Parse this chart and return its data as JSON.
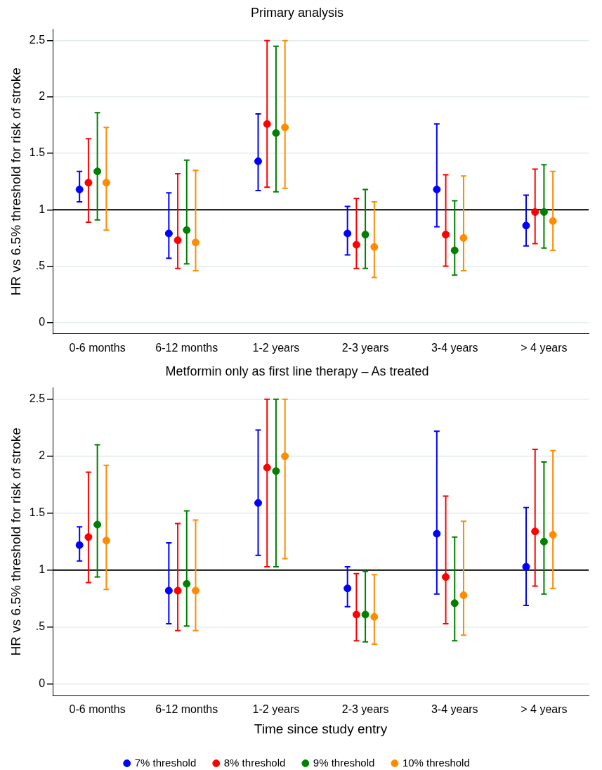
{
  "chart_data": [
    {
      "type": "scatter",
      "title": "Primary analysis",
      "ylabel": "HR vs 6.5% threshold for risk of stroke",
      "categories": [
        "0-6 months",
        "6-12 months",
        "1-2 years",
        "2-3 years",
        "3-4 years",
        "> 4 years"
      ],
      "series": [
        {
          "color": "#0000ff",
          "values": [
            1.18,
            0.79,
            1.43,
            0.79,
            1.18,
            0.86
          ],
          "errors": [
            [
              1.07,
              1.34
            ],
            [
              0.57,
              1.15
            ],
            [
              1.17,
              1.85
            ],
            [
              0.6,
              1.03
            ],
            [
              0.85,
              1.76
            ],
            [
              0.68,
              1.13
            ]
          ]
        },
        {
          "color": "#ff0000",
          "values": [
            1.24,
            0.73,
            1.76,
            0.69,
            0.78,
            0.98
          ],
          "errors": [
            [
              0.89,
              1.63
            ],
            [
              0.48,
              1.32
            ],
            [
              1.2,
              2.5
            ],
            [
              0.48,
              1.1
            ],
            [
              0.5,
              1.31
            ],
            [
              0.7,
              1.36
            ]
          ]
        },
        {
          "color": "#008000",
          "values": [
            1.34,
            0.82,
            1.68,
            0.78,
            0.64,
            0.98
          ],
          "errors": [
            [
              0.91,
              1.86
            ],
            [
              0.52,
              1.44
            ],
            [
              1.16,
              2.45
            ],
            [
              0.48,
              1.18
            ],
            [
              0.42,
              1.08
            ],
            [
              0.66,
              1.4
            ]
          ]
        },
        {
          "color": "#ff8c00",
          "values": [
            1.24,
            0.71,
            1.73,
            0.67,
            0.75,
            0.9
          ],
          "errors": [
            [
              0.82,
              1.73
            ],
            [
              0.46,
              1.35
            ],
            [
              1.19,
              2.5
            ],
            [
              0.4,
              1.07
            ],
            [
              0.46,
              1.3
            ],
            [
              0.64,
              1.34
            ]
          ]
        }
      ],
      "ylim": [
        -0.1,
        2.6
      ],
      "yticks": [
        0,
        {
          "value": 0.5,
          "label": ".5"
        },
        1,
        1.5,
        2,
        2.5
      ],
      "grid": "y",
      "marker": "circle",
      "legend": false,
      "ref_lines": [
        {
          "axis": "y",
          "value": 1,
          "color": "#000000"
        }
      ]
    },
    {
      "type": "scatter",
      "title": "Metformin only as first line therapy – As treated",
      "xlabel": "Time since study entry",
      "ylabel": "HR vs 6.5% threshold for risk of stroke",
      "categories": [
        "0-6 months",
        "6-12 months",
        "1-2 years",
        "2-3 years",
        "3-4 years",
        "> 4 years"
      ],
      "series": [
        {
          "name": "7% threshold",
          "color": "#0000ff",
          "values": [
            1.22,
            0.82,
            1.59,
            0.84,
            1.32,
            1.03
          ],
          "errors": [
            [
              1.08,
              1.38
            ],
            [
              0.53,
              1.24
            ],
            [
              1.13,
              2.23
            ],
            [
              0.68,
              1.03
            ],
            [
              0.79,
              2.22
            ],
            [
              0.69,
              1.55
            ]
          ]
        },
        {
          "name": "8% threshold",
          "color": "#ff0000",
          "values": [
            1.29,
            0.82,
            1.9,
            0.61,
            0.94,
            1.34
          ],
          "errors": [
            [
              0.89,
              1.86
            ],
            [
              0.47,
              1.41
            ],
            [
              1.03,
              2.5
            ],
            [
              0.38,
              0.97
            ],
            [
              0.53,
              1.65
            ],
            [
              0.86,
              2.06
            ]
          ]
        },
        {
          "name": "9% threshold",
          "color": "#008000",
          "values": [
            1.4,
            0.88,
            1.87,
            0.61,
            0.71,
            1.25
          ],
          "errors": [
            [
              0.94,
              2.1
            ],
            [
              0.51,
              1.52
            ],
            [
              1.03,
              2.5
            ],
            [
              0.37,
              0.99
            ],
            [
              0.38,
              1.29
            ],
            [
              0.79,
              1.95
            ]
          ]
        },
        {
          "name": "10% threshold",
          "color": "#ff8c00",
          "values": [
            1.26,
            0.82,
            2.0,
            0.59,
            0.78,
            1.31
          ],
          "errors": [
            [
              0.83,
              1.92
            ],
            [
              0.47,
              1.44
            ],
            [
              1.1,
              2.5
            ],
            [
              0.35,
              0.96
            ],
            [
              0.43,
              1.43
            ],
            [
              0.84,
              2.05
            ]
          ]
        }
      ],
      "ylim": [
        -0.1,
        2.6
      ],
      "yticks": [
        0,
        {
          "value": 0.5,
          "label": ".5"
        },
        1,
        1.5,
        2,
        2.5
      ],
      "grid": "y",
      "marker": "circle",
      "legend": "bottom",
      "ref_lines": [
        {
          "axis": "y",
          "value": 1,
          "color": "#000000"
        }
      ]
    }
  ]
}
